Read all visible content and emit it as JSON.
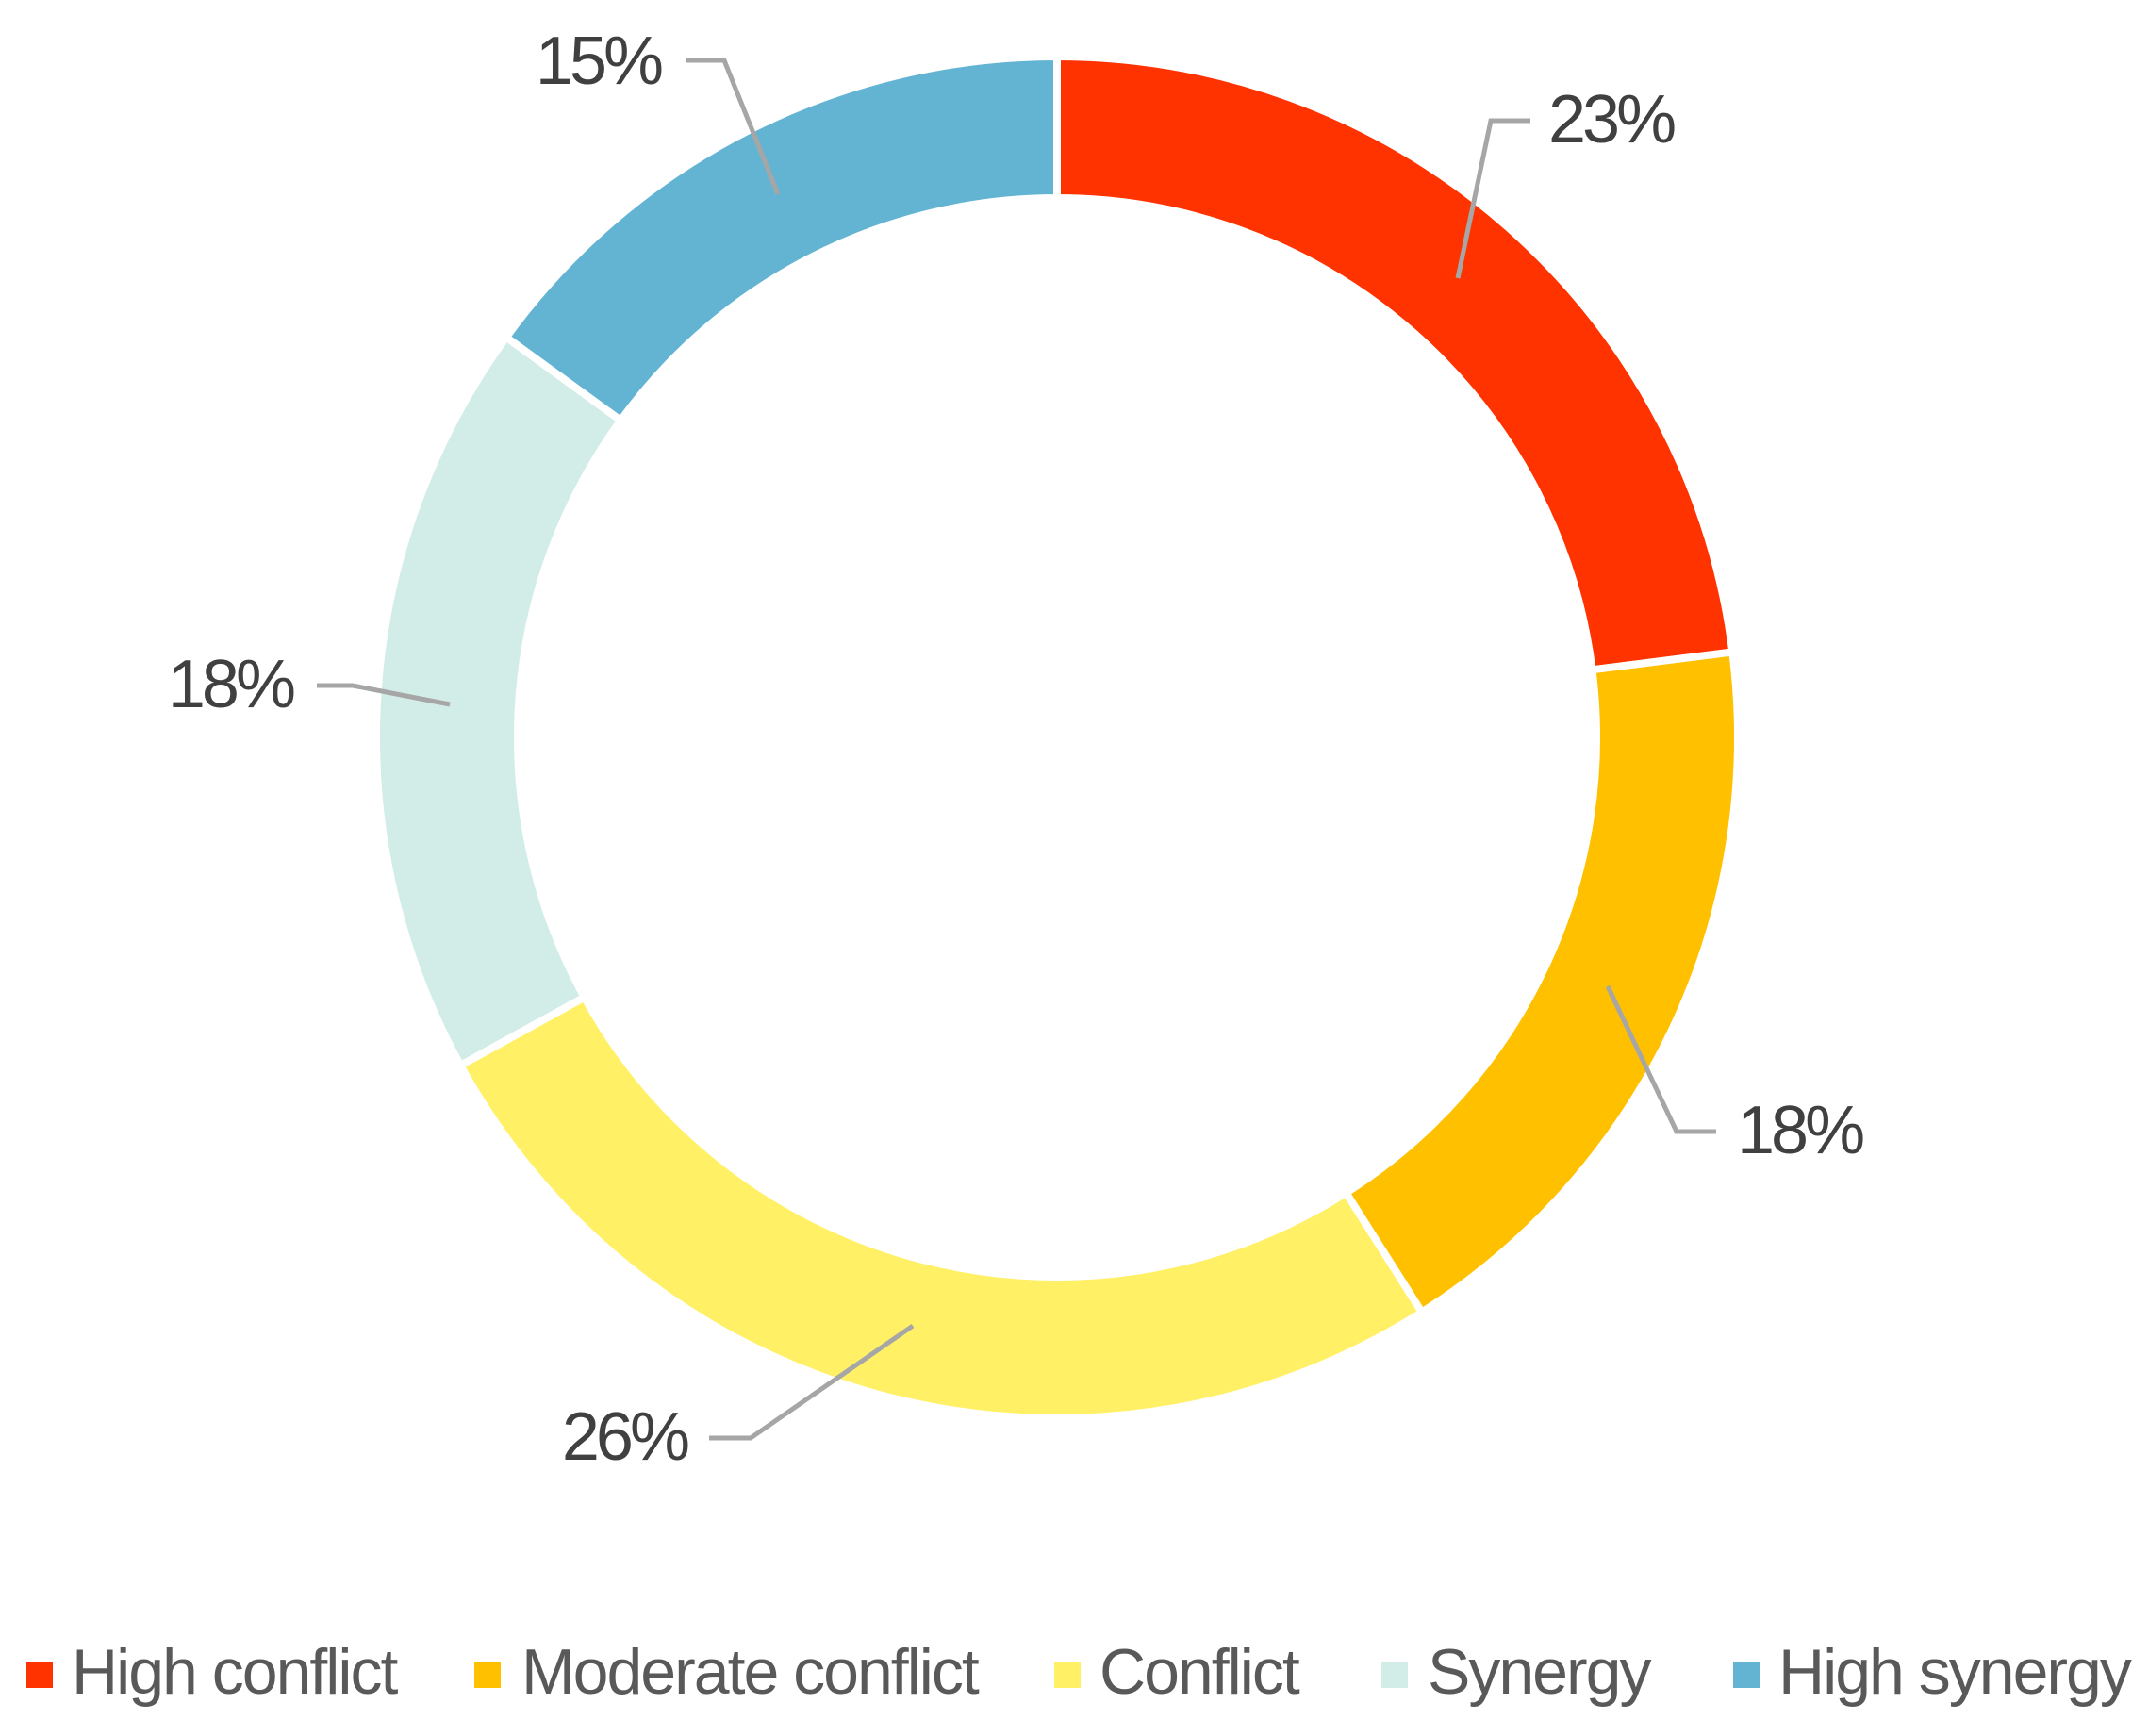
{
  "chart_data": {
    "type": "pie",
    "variant": "donut",
    "title": "",
    "legend_position": "bottom",
    "slices": [
      {
        "name": "High conflict",
        "value": 23,
        "label": "23%",
        "color": "#FF3300"
      },
      {
        "name": "Moderate conflict",
        "value": 18,
        "label": "18%",
        "color": "#FFC000"
      },
      {
        "name": "Conflict",
        "value": 26,
        "label": "26%",
        "color": "#FFF066"
      },
      {
        "name": "Synergy",
        "value": 18,
        "label": "18%",
        "color": "#D2ECE7"
      },
      {
        "name": "High synergy",
        "value": 15,
        "label": "15%",
        "color": "#63B3D3"
      }
    ]
  }
}
